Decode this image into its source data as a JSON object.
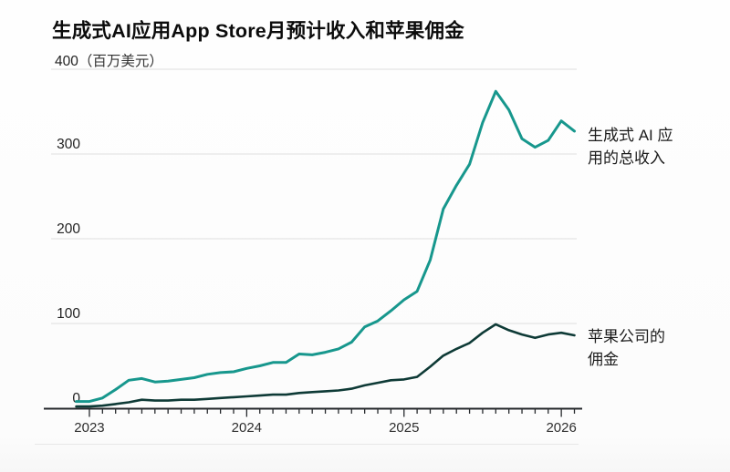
{
  "page": {
    "title": "生成式AI应用App Store月预计收入和苹果佣金"
  },
  "axis": {
    "top_tick": "400",
    "unit": "（百万美元）"
  },
  "annotations": {
    "revenue_line1": "生成式 AI 应",
    "revenue_line2": "用的总收入",
    "commission_line1": "苹果公司的",
    "commission_line2": "佣金"
  },
  "colors": {
    "revenue_line": "#17978d",
    "commission_line": "#0e3a36",
    "gridline": "#dedede",
    "axis_line": "#26292c",
    "tick_label": "#2e2e2e"
  },
  "chart_data": {
    "type": "line",
    "title": "生成式AI应用App Store月预计收入和苹果佣金",
    "ylabel": "百万美元",
    "ylim": [
      0,
      400
    ],
    "yticks": [
      0,
      100,
      200,
      300,
      400
    ],
    "year_ticks": [
      "2023",
      "2024",
      "2025",
      "2026"
    ],
    "grid": "horizontal-only",
    "legend_position": "direct-labels-right",
    "x": [
      "2022-12",
      "2023-01",
      "2023-02",
      "2023-03",
      "2023-04",
      "2023-05",
      "2023-06",
      "2023-07",
      "2023-08",
      "2023-09",
      "2023-10",
      "2023-11",
      "2023-12",
      "2024-01",
      "2024-02",
      "2024-03",
      "2024-04",
      "2024-05",
      "2024-06",
      "2024-07",
      "2024-08",
      "2024-09",
      "2024-10",
      "2024-11",
      "2024-12",
      "2025-01",
      "2025-02",
      "2025-03",
      "2025-04",
      "2025-05",
      "2025-06",
      "2025-07",
      "2025-08",
      "2025-09",
      "2025-10",
      "2025-11",
      "2025-12",
      "2026-01",
      "2026-02"
    ],
    "series": [
      {
        "name": "生成式 AI 应用的总收入",
        "color": "#17978d",
        "values": [
          8,
          8,
          12,
          22,
          33,
          35,
          31,
          32,
          34,
          36,
          40,
          42,
          43,
          47,
          50,
          54,
          54,
          64,
          63,
          66,
          70,
          78,
          96,
          103,
          115,
          128,
          138,
          175,
          235,
          263,
          288,
          337,
          374,
          352,
          318,
          308,
          316,
          339,
          327
        ]
      },
      {
        "name": "苹果公司的佣金",
        "color": "#0e3a36",
        "values": [
          2,
          2,
          3,
          5,
          7,
          10,
          9,
          9,
          10,
          10,
          11,
          12,
          13,
          14,
          15,
          16,
          16,
          18,
          19,
          20,
          21,
          23,
          27,
          30,
          33,
          34,
          37,
          49,
          62,
          70,
          77,
          89,
          99,
          92,
          87,
          83,
          87,
          89,
          86
        ]
      }
    ]
  }
}
